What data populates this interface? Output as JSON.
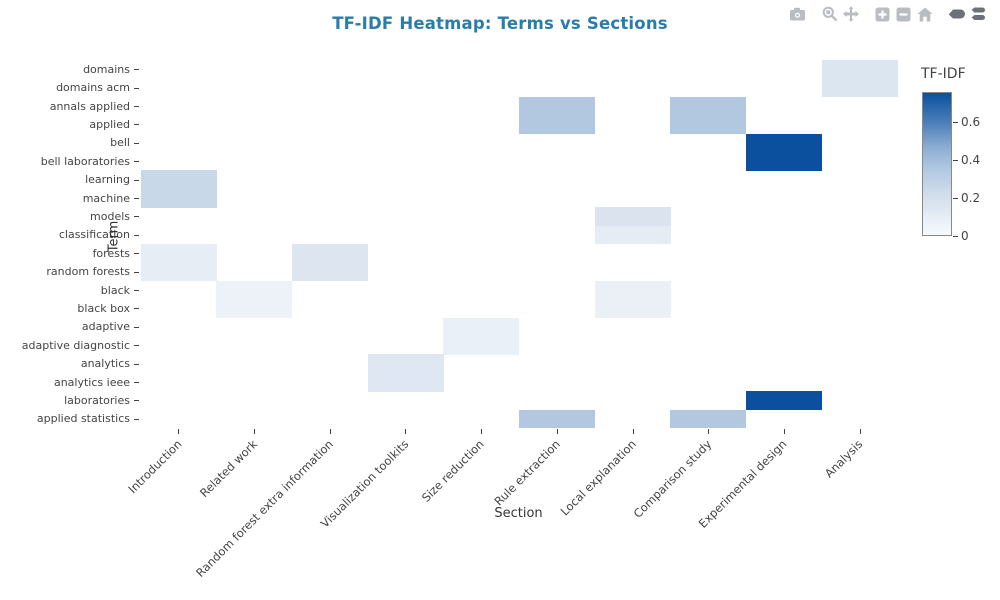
{
  "header": {
    "title_color": "#2a7da9"
  },
  "modebar": {
    "icon_color": "#b9bdc1",
    "active_icon_color": "#6d7177",
    "buttons": [
      {
        "name": "camera",
        "active": false
      },
      {
        "name": "zoom",
        "active": false
      },
      {
        "name": "pan",
        "active": false
      },
      {
        "name": "zoom-in",
        "active": false
      },
      {
        "name": "zoom-out",
        "active": false
      },
      {
        "name": "home",
        "active": false
      },
      {
        "name": "hover-closest",
        "active": true
      },
      {
        "name": "hover-compare",
        "active": true
      }
    ],
    "groups": [
      [
        "camera"
      ],
      [
        "zoom",
        "pan"
      ],
      [
        "zoom-in",
        "zoom-out",
        "home"
      ],
      [
        "hover-closest",
        "hover-compare"
      ]
    ]
  },
  "chart_data": {
    "type": "heatmap",
    "title": "TF-IDF Heatmap: Terms vs Sections",
    "xlabel": "Section",
    "ylabel": "Term",
    "grid": false,
    "x_categories": [
      "Introduction",
      "Related work",
      "Random forest extra information",
      "Visualization toolkits",
      "Size reduction",
      "Rule extraction",
      "Local explanation",
      "Comparison study",
      "Experimental design",
      "Analysis"
    ],
    "y_categories": [
      "domains",
      "domains acm",
      "annals applied",
      "applied",
      "bell",
      "bell laboratories",
      "learning",
      "machine",
      "models",
      "classification",
      "forests",
      "random forests",
      "black",
      "black box",
      "adaptive",
      "adaptive diagnostic",
      "analytics",
      "analytics ieee",
      "laboratories",
      "applied statistics"
    ],
    "colorbar": {
      "title": "TF-IDF",
      "vmin": 0,
      "vmax": 0.755,
      "ticks": [
        {
          "value": 0.6,
          "label": "0.6"
        },
        {
          "value": 0.4,
          "label": "0.4"
        },
        {
          "value": 0.2,
          "label": "0.2"
        },
        {
          "value": 0,
          "label": "0"
        }
      ],
      "top_color": "#0b509f",
      "bottom_color": "#f7fafd"
    },
    "cells": [
      {
        "term": "domains",
        "section": "Analysis",
        "value": 0.16,
        "color": "#dce6f0"
      },
      {
        "term": "domains acm",
        "section": "Analysis",
        "value": 0.16,
        "color": "#dce6f0"
      },
      {
        "term": "annals applied",
        "section": "Rule extraction",
        "value": 0.35,
        "color": "#b1c8e0"
      },
      {
        "term": "applied",
        "section": "Rule extraction",
        "value": 0.35,
        "color": "#b1c8e0"
      },
      {
        "term": "annals applied",
        "section": "Comparison study",
        "value": 0.35,
        "color": "#b1c8e0"
      },
      {
        "term": "applied",
        "section": "Comparison study",
        "value": 0.35,
        "color": "#b1c8e0"
      },
      {
        "term": "bell",
        "section": "Experimental design",
        "value": 0.75,
        "color": "#0b509f"
      },
      {
        "term": "bell laboratories",
        "section": "Experimental design",
        "value": 0.75,
        "color": "#0b509f"
      },
      {
        "term": "learning",
        "section": "Introduction",
        "value": 0.25,
        "color": "#c9d8e8"
      },
      {
        "term": "machine",
        "section": "Introduction",
        "value": 0.25,
        "color": "#c9d8e8"
      },
      {
        "term": "models",
        "section": "Local explanation",
        "value": 0.17,
        "color": "#dbe4ee"
      },
      {
        "term": "classification",
        "section": "Local explanation",
        "value": 0.12,
        "color": "#e5ecf4"
      },
      {
        "term": "forests",
        "section": "Introduction",
        "value": 0.1,
        "color": "#e7edf5"
      },
      {
        "term": "random forests",
        "section": "Introduction",
        "value": 0.1,
        "color": "#e7edf5"
      },
      {
        "term": "forests",
        "section": "Random forest extra information",
        "value": 0.16,
        "color": "#dde6f0"
      },
      {
        "term": "random forests",
        "section": "Random forest extra information",
        "value": 0.16,
        "color": "#dde6f0"
      },
      {
        "term": "black",
        "section": "Related work",
        "value": 0.07,
        "color": "#edf1f8"
      },
      {
        "term": "black box",
        "section": "Related work",
        "value": 0.07,
        "color": "#edf1f8"
      },
      {
        "term": "black",
        "section": "Local explanation",
        "value": 0.08,
        "color": "#ebf0f7"
      },
      {
        "term": "black box",
        "section": "Local explanation",
        "value": 0.08,
        "color": "#ebf0f7"
      },
      {
        "term": "adaptive",
        "section": "Size reduction",
        "value": 0.08,
        "color": "#eaf0f8"
      },
      {
        "term": "adaptive diagnostic",
        "section": "Size reduction",
        "value": 0.08,
        "color": "#eaf0f8"
      },
      {
        "term": "analytics",
        "section": "Visualization toolkits",
        "value": 0.14,
        "color": "#dfe8f2"
      },
      {
        "term": "analytics ieee",
        "section": "Visualization toolkits",
        "value": 0.14,
        "color": "#dfe8f2"
      },
      {
        "term": "laboratories",
        "section": "Experimental design",
        "value": 0.75,
        "color": "#0b509f"
      },
      {
        "term": "applied statistics",
        "section": "Rule extraction",
        "value": 0.35,
        "color": "#b1c8e0"
      },
      {
        "term": "applied statistics",
        "section": "Comparison study",
        "value": 0.35,
        "color": "#b1c8e0"
      }
    ]
  }
}
